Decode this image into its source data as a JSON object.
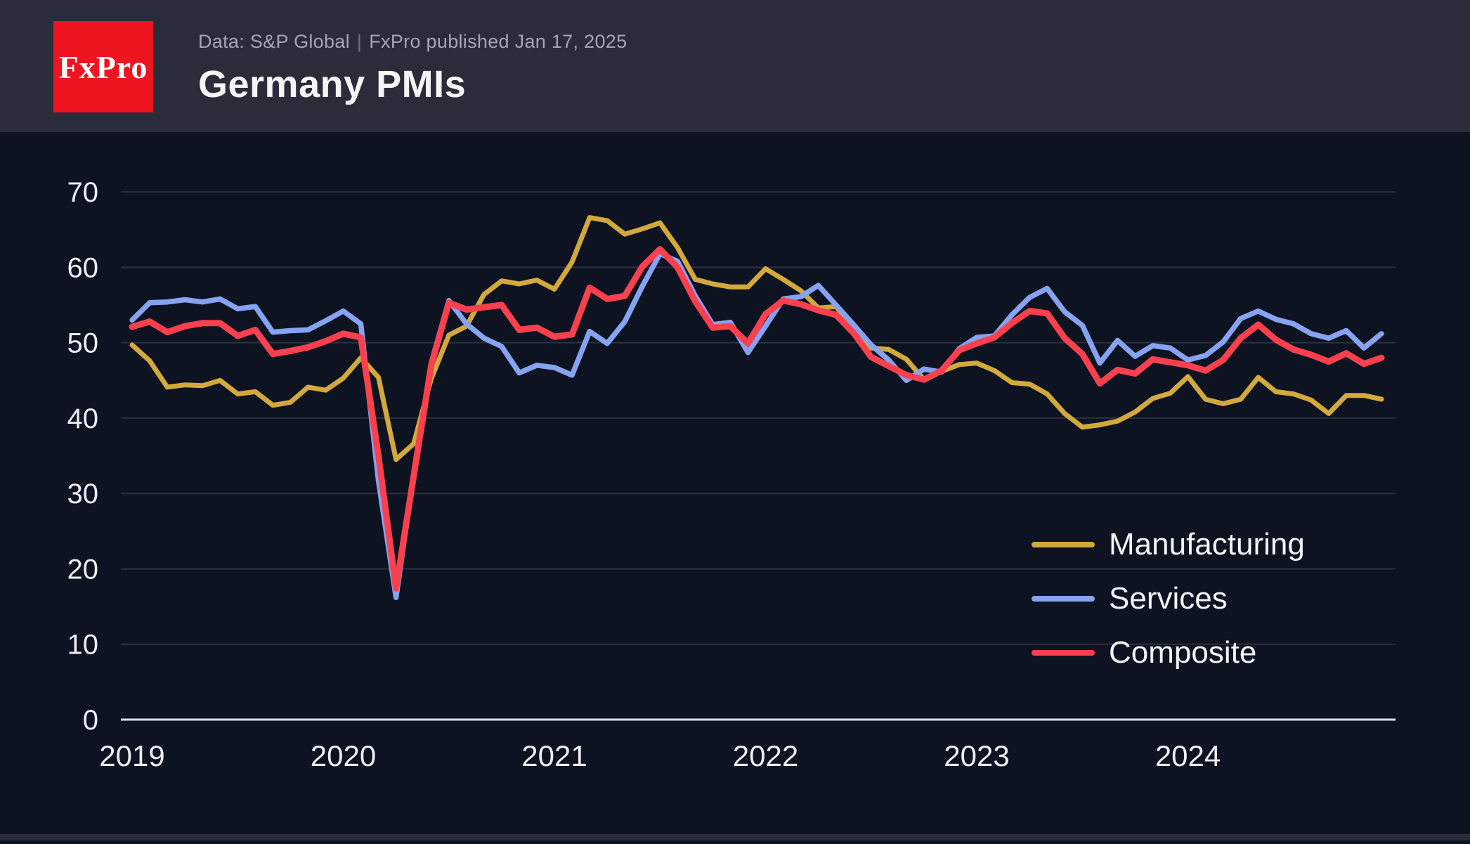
{
  "header": {
    "logo_text": "FxPro",
    "source_left": "Data: S&P Global",
    "source_separator": "|",
    "source_right": "FxPro published Jan 17, 2025",
    "title": "Germany PMIs"
  },
  "colors": {
    "header_bg": "#2a2d39",
    "chart_bg": "#0e1321",
    "logo_bg": "#ee1420",
    "grid": "#2b3040",
    "axis_line": "#dfe2e8",
    "tick_text": "#eceef2",
    "manufacturing": "#d2a93c",
    "services": "#86a3f2",
    "composite": "#f9404e"
  },
  "chart_data": {
    "type": "line",
    "title": "Germany PMIs",
    "x_unit": "month",
    "x_start": "2019-01",
    "x_end": "2024-12",
    "x_tick_labels": [
      "2019",
      "2020",
      "2021",
      "2022",
      "2023",
      "2024"
    ],
    "y_ticks": [
      0,
      10,
      20,
      30,
      40,
      50,
      60,
      70
    ],
    "ylim": [
      0,
      75
    ],
    "grid": "horizontal",
    "legend_position": "bottom-right",
    "series": [
      {
        "name": "Manufacturing",
        "color_key": "manufacturing",
        "values": [
          49.7,
          47.6,
          44.1,
          44.4,
          44.3,
          45.0,
          43.2,
          43.5,
          41.7,
          42.1,
          44.1,
          43.7,
          45.3,
          48.0,
          45.4,
          34.5,
          36.6,
          45.2,
          51.0,
          52.2,
          56.4,
          58.2,
          57.8,
          58.3,
          57.1,
          60.7,
          66.6,
          66.2,
          64.4,
          65.1,
          65.9,
          62.6,
          58.4,
          57.8,
          57.4,
          57.4,
          59.8,
          58.4,
          56.9,
          54.6,
          54.8,
          52.0,
          49.3,
          49.1,
          47.8,
          45.1,
          46.2,
          47.1,
          47.3,
          46.3,
          44.7,
          44.5,
          43.2,
          40.6,
          38.8,
          39.1,
          39.6,
          40.8,
          42.6,
          43.3,
          45.5,
          42.5,
          41.9,
          42.5,
          45.4,
          43.5,
          43.2,
          42.4,
          40.6,
          43.0,
          43.0,
          42.5
        ]
      },
      {
        "name": "Services",
        "color_key": "services",
        "values": [
          53.0,
          55.3,
          55.4,
          55.7,
          55.4,
          55.8,
          54.5,
          54.8,
          51.4,
          51.6,
          51.7,
          52.9,
          54.2,
          52.5,
          31.7,
          16.2,
          32.6,
          47.3,
          55.6,
          52.5,
          50.6,
          49.5,
          46.0,
          47.0,
          46.7,
          45.7,
          51.5,
          49.9,
          52.8,
          57.5,
          61.8,
          60.8,
          56.2,
          52.4,
          52.7,
          48.7,
          52.2,
          55.8,
          56.1,
          57.6,
          55.0,
          52.4,
          49.7,
          47.7,
          45.0,
          46.5,
          46.1,
          49.2,
          50.7,
          50.9,
          53.7,
          56.0,
          57.2,
          54.1,
          52.3,
          47.3,
          50.3,
          48.2,
          49.6,
          49.3,
          47.7,
          48.3,
          50.1,
          53.2,
          54.2,
          53.1,
          52.5,
          51.2,
          50.6,
          51.6,
          49.3,
          51.2
        ]
      },
      {
        "name": "Composite",
        "color_key": "composite",
        "values": [
          52.1,
          52.8,
          51.4,
          52.2,
          52.6,
          52.6,
          50.9,
          51.7,
          48.5,
          48.9,
          49.4,
          50.2,
          51.2,
          50.7,
          35.0,
          17.4,
          32.3,
          47.0,
          55.3,
          54.4,
          54.7,
          55.0,
          51.7,
          52.0,
          50.8,
          51.1,
          57.3,
          55.8,
          56.2,
          60.1,
          62.4,
          60.0,
          55.5,
          52.0,
          52.2,
          49.9,
          53.8,
          55.6,
          55.1,
          54.3,
          53.7,
          51.3,
          48.1,
          46.9,
          45.7,
          45.1,
          46.3,
          49.0,
          49.9,
          50.7,
          52.6,
          54.2,
          53.9,
          50.6,
          48.5,
          44.6,
          46.4,
          45.9,
          47.8,
          47.4,
          47.0,
          46.3,
          47.7,
          50.6,
          52.4,
          50.4,
          49.1,
          48.4,
          47.5,
          48.6,
          47.2,
          48.0
        ]
      }
    ]
  },
  "legend": {
    "items": [
      {
        "label": "Manufacturing",
        "color_key": "manufacturing"
      },
      {
        "label": "Services",
        "color_key": "services"
      },
      {
        "label": "Composite",
        "color_key": "composite"
      }
    ]
  }
}
